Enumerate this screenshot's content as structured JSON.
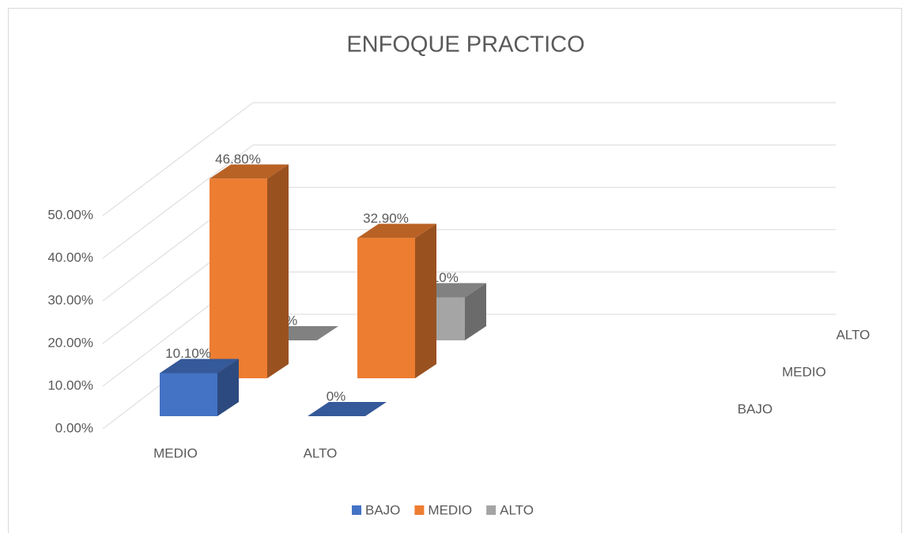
{
  "chart_data": {
    "type": "bar3d",
    "title": "ENFOQUE PRACTICO",
    "categories": [
      "MEDIO",
      "ALTO"
    ],
    "series": [
      {
        "name": "BAJO",
        "color": "#4472c4",
        "values": [
          10.1,
          0
        ],
        "value_labels": [
          "10.10%",
          "0%"
        ]
      },
      {
        "name": "MEDIO",
        "color": "#ed7d31",
        "values": [
          46.8,
          32.9
        ],
        "value_labels": [
          "46.80%",
          "32.90%"
        ]
      },
      {
        "name": "ALTO",
        "color": "#a5a5a5",
        "values": [
          0,
          10.1
        ],
        "value_labels": [
          "0%",
          "10.10%"
        ]
      }
    ],
    "ylim": [
      0,
      50
    ],
    "yticks": [
      {
        "value": 0,
        "label": "0.00%"
      },
      {
        "value": 10,
        "label": "10.00%"
      },
      {
        "value": 20,
        "label": "20.00%"
      },
      {
        "value": 30,
        "label": "30.00%"
      },
      {
        "value": 40,
        "label": "40.00%"
      },
      {
        "value": 50,
        "label": "50.00%"
      }
    ],
    "grid": true,
    "legend": "bottom"
  }
}
